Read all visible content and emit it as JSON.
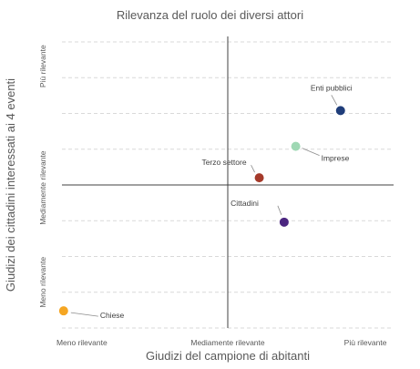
{
  "chart_data": {
    "type": "scatter",
    "title": "Rilevanza del ruolo dei diversi attori",
    "xlabel": "Giudizi del campione di abitanti",
    "ylabel": "Giudizi dei cittadini interessati ai 4 eventi",
    "x_tick_labels": [
      "Meno rilevante",
      "Mediamente rilevante",
      "Più rilevante"
    ],
    "y_tick_labels": [
      "Meno rilevante",
      "Mediamente rilevante",
      "Più rilevante"
    ],
    "xlim": [
      -1,
      1
    ],
    "ylim": [
      -1,
      1
    ],
    "grid": "horizontal",
    "points": [
      {
        "label": "Enti pubblici",
        "x": 0.68,
        "y": 0.52,
        "color": "#1f3d7a"
      },
      {
        "label": "Imprese",
        "x": 0.41,
        "y": 0.27,
        "color": "#9fd8b4"
      },
      {
        "label": "Terzo settore",
        "x": 0.19,
        "y": 0.05,
        "color": "#a53a2a"
      },
      {
        "label": "Cittadini",
        "x": 0.34,
        "y": -0.26,
        "color": "#4b2680"
      },
      {
        "label": "Chiese",
        "x": -0.99,
        "y": -0.88,
        "color": "#f5a623"
      }
    ]
  }
}
